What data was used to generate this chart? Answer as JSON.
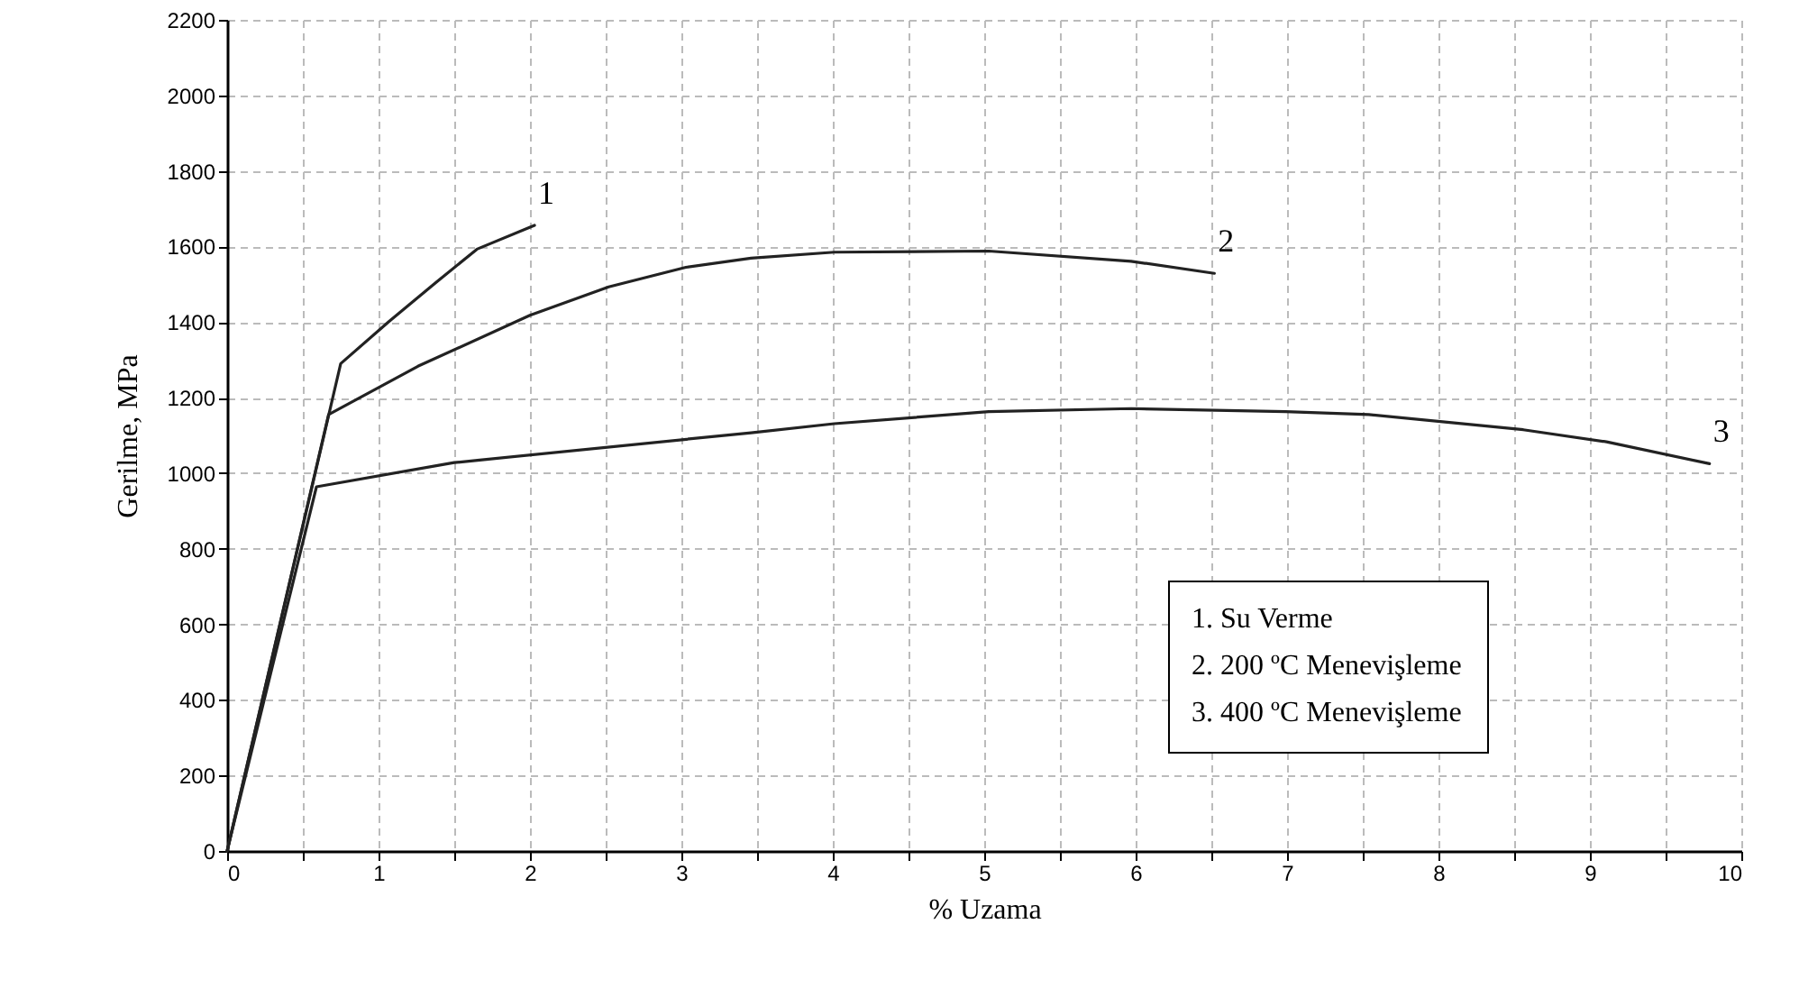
{
  "chart_data": {
    "type": "line",
    "xlabel": "% Uzama",
    "ylabel": "Gerilme, MPa",
    "xlim": [
      0,
      10
    ],
    "ylim": [
      0,
      2200
    ],
    "xticks": [
      0,
      {
        "value": 0.5,
        "label": null
      },
      1,
      {
        "value": 1.5,
        "label": null
      },
      2,
      {
        "value": 2.5,
        "label": null
      },
      3,
      {
        "value": 3.5,
        "label": null
      },
      4,
      {
        "value": 4.5,
        "label": null
      },
      5,
      {
        "value": 5.5,
        "label": null
      },
      6,
      {
        "value": 6.5,
        "label": null
      },
      7,
      {
        "value": 7.5,
        "label": null
      },
      8,
      {
        "value": 8.5,
        "label": null
      },
      9,
      {
        "value": 9.5,
        "label": null
      },
      10
    ],
    "yticks": [
      0,
      200,
      400,
      600,
      800,
      1000,
      1200,
      1400,
      1600,
      1800,
      2000,
      2200
    ],
    "grid": true,
    "line_style": "solid",
    "series": [
      {
        "name": "1",
        "color": "#222222",
        "x": [
          0,
          0.75,
          1.07,
          1.38,
          1.65,
          2.03
        ],
        "values": [
          0,
          1290,
          1402,
          1505,
          1593,
          1656
        ]
      },
      {
        "name": "2",
        "color": "#222222",
        "x": [
          0,
          0.67,
          1.26,
          2.0,
          2.52,
          3.03,
          3.46,
          4.01,
          5.03,
          5.97,
          6.52
        ],
        "values": [
          0,
          1155,
          1283,
          1418,
          1493,
          1545,
          1569,
          1585,
          1588,
          1561,
          1529
        ]
      },
      {
        "name": "3",
        "color": "#222222",
        "x": [
          0,
          0.59,
          1.5,
          3.46,
          4.01,
          5.03,
          5.97,
          6.99,
          7.54,
          8.56,
          9.11,
          9.79
        ],
        "values": [
          0,
          964,
          1028,
          1107,
          1131,
          1163,
          1171,
          1163,
          1155,
          1115,
          1083,
          1025
        ]
      }
    ],
    "annotations": [
      "1. Su Verme",
      "2. 200 ºC Menevişleme",
      "3. 400 ºC Menevişleme"
    ]
  }
}
